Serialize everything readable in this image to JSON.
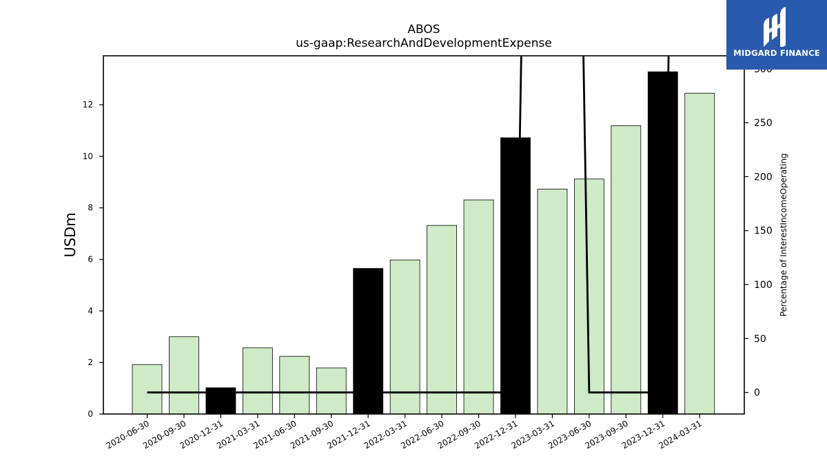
{
  "chart_data": {
    "type": "bar",
    "title": "ABOS",
    "subtitle": "us-gaap:ResearchAndDevelopmentExpense",
    "ylabel": "USDm",
    "y2label": "Percentage of InterestIncomeOperating",
    "ylim": [
      0,
      13.9
    ],
    "y2lim": [
      -20,
      312
    ],
    "yticks": [
      "0",
      "2",
      "4",
      "6",
      "8",
      "10",
      "12"
    ],
    "y2ticks": [
      "0",
      "50",
      "100",
      "150",
      "200",
      "250",
      "300"
    ],
    "categories": [
      "2020-06-30",
      "2020-09-30",
      "2020-12-31",
      "2021-03-31",
      "2021-06-30",
      "2021-09-30",
      "2021-12-31",
      "2022-03-31",
      "2022-06-30",
      "2022-09-30",
      "2022-12-31",
      "2023-03-31",
      "2023-06-30",
      "2023-09-30",
      "2023-12-31",
      "2024-03-31"
    ],
    "values": [
      1.92,
      3.0,
      1.02,
      2.57,
      2.24,
      1.79,
      5.65,
      5.98,
      7.32,
      8.31,
      10.72,
      8.73,
      9.12,
      11.19,
      13.28,
      12.45
    ],
    "highlight": [
      false,
      false,
      true,
      false,
      false,
      false,
      true,
      false,
      false,
      false,
      true,
      false,
      false,
      false,
      true,
      false
    ],
    "bar_color": "#ceeac7",
    "highlight_color": "#000000",
    "line_series": {
      "values": [
        0,
        0,
        0,
        0,
        0,
        0,
        0,
        0,
        0,
        0,
        0,
        2000,
        0,
        0,
        0,
        2000
      ],
      "color": "#000000"
    },
    "grid": false
  },
  "logo": {
    "text": "MIDGARD FINANCE",
    "background": "#2a5aad"
  }
}
